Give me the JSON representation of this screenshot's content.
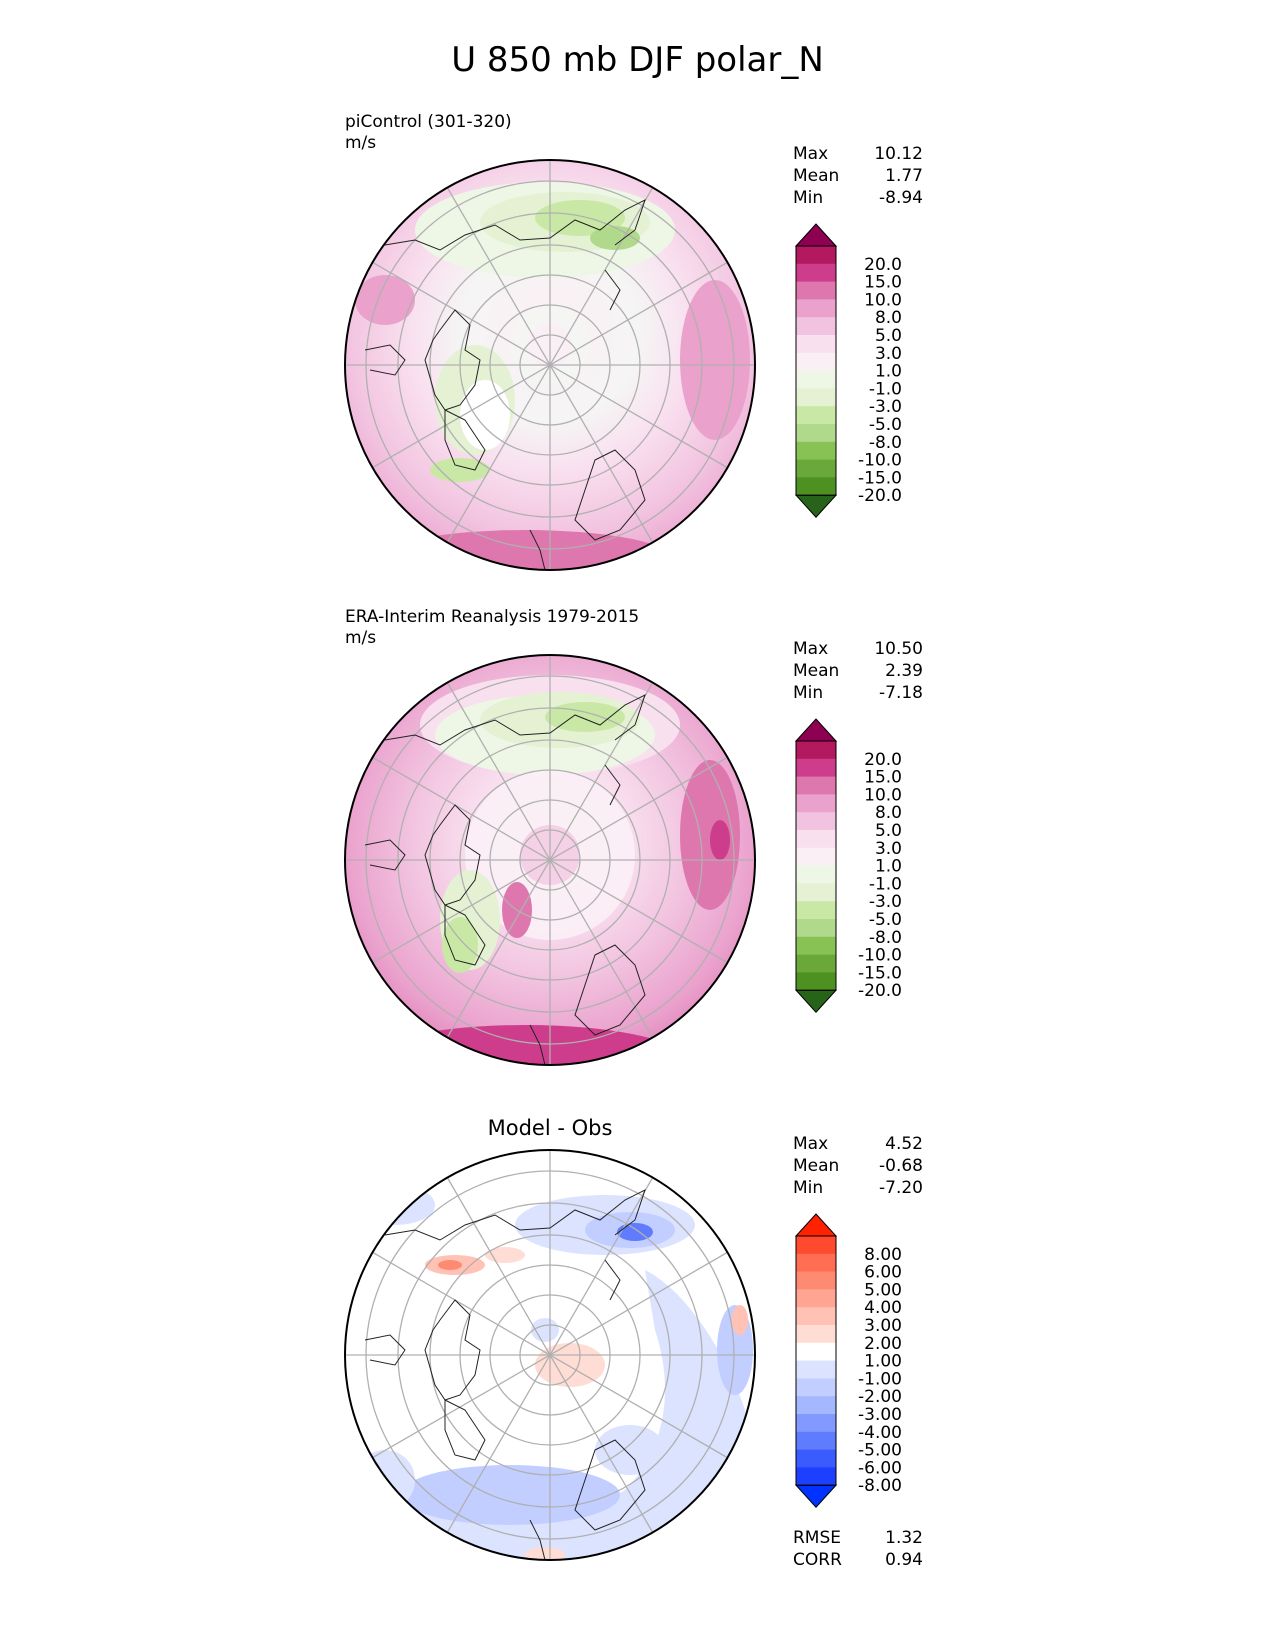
{
  "title": "U 850 mb DJF polar_N",
  "panels": [
    {
      "id": "test",
      "title": "piControl (301-320)",
      "units": "m/s",
      "stats": [
        {
          "label": "Max",
          "value": "10.12"
        },
        {
          "label": "Mean",
          "value": "1.77"
        },
        {
          "label": "Min",
          "value": "-8.94"
        }
      ],
      "colorbar": {
        "levels": [
          "20.0",
          "15.0",
          "10.0",
          "8.0",
          "5.0",
          "3.0",
          "1.0",
          "-1.0",
          "-3.0",
          "-5.0",
          "-8.0",
          "-10.0",
          "-15.0",
          "-20.0"
        ],
        "colors": [
          "#8e0152",
          "#b3195f",
          "#cd3d8c",
          "#de77ae",
          "#eaa2cd",
          "#f2c3e0",
          "#f9e0ef",
          "#fbeff6",
          "#eef6e6",
          "#e4f2d3",
          "#c9e8a5",
          "#b0d98b",
          "#88c254",
          "#6aa83c",
          "#4d9221",
          "#276419"
        ],
        "scheme": "diverging-PiYG"
      }
    },
    {
      "id": "reference",
      "title": "ERA-Interim Reanalysis 1979-2015",
      "units": "m/s",
      "stats": [
        {
          "label": "Max",
          "value": "10.50"
        },
        {
          "label": "Mean",
          "value": "2.39"
        },
        {
          "label": "Min",
          "value": "-7.18"
        }
      ],
      "colorbar": {
        "levels": [
          "20.0",
          "15.0",
          "10.0",
          "8.0",
          "5.0",
          "3.0",
          "1.0",
          "-1.0",
          "-3.0",
          "-5.0",
          "-8.0",
          "-10.0",
          "-15.0",
          "-20.0"
        ],
        "colors": [
          "#8e0152",
          "#b3195f",
          "#cd3d8c",
          "#de77ae",
          "#eaa2cd",
          "#f2c3e0",
          "#f9e0ef",
          "#fbeff6",
          "#eef6e6",
          "#e4f2d3",
          "#c9e8a5",
          "#b0d98b",
          "#88c254",
          "#6aa83c",
          "#4d9221",
          "#276419"
        ],
        "scheme": "diverging-PiYG"
      }
    },
    {
      "id": "difference",
      "title": "Model - Obs",
      "stats": [
        {
          "label": "Max",
          "value": "4.52"
        },
        {
          "label": "Mean",
          "value": "-0.68"
        },
        {
          "label": "Min",
          "value": "-7.20"
        }
      ],
      "metrics": [
        {
          "label": "RMSE",
          "value": "1.32"
        },
        {
          "label": "CORR",
          "value": "0.94"
        }
      ],
      "colorbar": {
        "levels": [
          "8.00",
          "6.00",
          "5.00",
          "4.00",
          "3.00",
          "2.00",
          "1.00",
          "-1.00",
          "-2.00",
          "-3.00",
          "-4.00",
          "-5.00",
          "-6.00",
          "-8.00"
        ],
        "colors": [
          "#ff2200",
          "#ff4a2e",
          "#ff6e52",
          "#ff8a72",
          "#ffa592",
          "#ffc2b4",
          "#ffdcd4",
          "#ffffff",
          "#dce3ff",
          "#c2ceff",
          "#a4b8ff",
          "#8299ff",
          "#5f7cff",
          "#3a5cff",
          "#1d40ff",
          "#0033ff"
        ],
        "scheme": "diverging-blue-red"
      }
    }
  ]
}
